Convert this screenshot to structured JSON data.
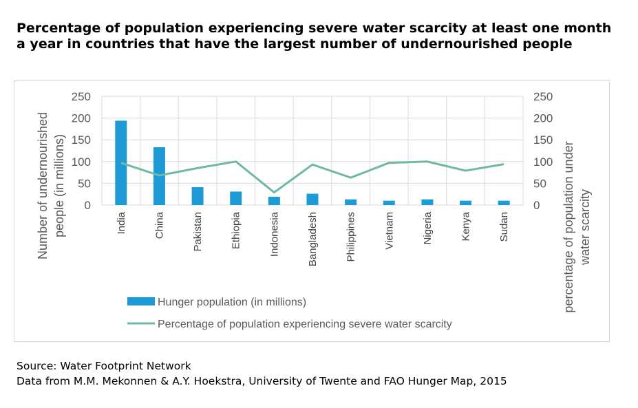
{
  "title": "Percentage of population experiencing severe water scarcity at least one month a year in countries that have the largest number of undernourished people",
  "source_line_1": "Source: Water Footprint Network",
  "source_line_2": "Data from M.M. Mekonnen & A.Y. Hoekstra, University of Twente and FAO Hunger Map, 2015",
  "colors": {
    "bar": "#1e9bd7",
    "line": "#6fb8a8",
    "grid": "#d9d9d9"
  },
  "chart_data": {
    "type": "bar",
    "categories": [
      "India",
      "China",
      "Pakistan",
      "Ethiopia",
      "Indonesia",
      "Bangladesh",
      "Philippines",
      "Vietnam",
      "Nigeria",
      "Kenya",
      "Sudan"
    ],
    "series": [
      {
        "name": "Hunger population (in millions)",
        "type": "bar",
        "axis": "left",
        "values": [
          194,
          133,
          41,
          31,
          19,
          26,
          13,
          10,
          13,
          10,
          10
        ]
      },
      {
        "name": "Percentage of population experiencing severe water scarcity",
        "type": "line",
        "axis": "right",
        "values": [
          97,
          68,
          85,
          100,
          29,
          93,
          63,
          97,
          100,
          79,
          94
        ]
      }
    ],
    "ylabel_left": "Number  of undernourished people (in millions)",
    "ylabel_left_lines": [
      "Number  of undernourished",
      "people (in millions)"
    ],
    "ylabel_right": "percentage of population under water scarcity",
    "ylabel_right_lines": [
      "percentage of population under",
      "water scarcity"
    ],
    "ylim": [
      0,
      250
    ],
    "ylim_right": [
      0,
      250
    ],
    "yticks": [
      "0",
      "50",
      "100",
      "150",
      "200",
      "250"
    ],
    "grid": true,
    "legend_position": "bottom"
  }
}
